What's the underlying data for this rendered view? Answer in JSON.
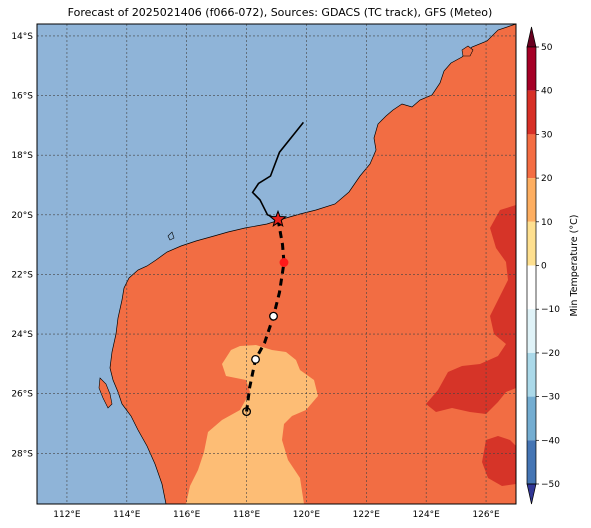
{
  "title": "Forecast of 2025021406 (f066-072), Sources: GDACS (TC track), GFS (Meteo)",
  "map": {
    "lon_range": [
      111,
      127
    ],
    "lat_range": [
      -29.7,
      -13.6
    ],
    "lon_ticks": [
      {
        "v": 112,
        "label": "112°E"
      },
      {
        "v": 114,
        "label": "114°E"
      },
      {
        "v": 116,
        "label": "116°E"
      },
      {
        "v": 118,
        "label": "118°E"
      },
      {
        "v": 120,
        "label": "120°E"
      },
      {
        "v": 122,
        "label": "122°E"
      },
      {
        "v": 124,
        "label": "124°E"
      },
      {
        "v": 126,
        "label": "126°E"
      }
    ],
    "lat_ticks": [
      {
        "v": -14,
        "label": "14°S"
      },
      {
        "v": -16,
        "label": "16°S"
      },
      {
        "v": -18,
        "label": "18°S"
      },
      {
        "v": -20,
        "label": "20°S"
      },
      {
        "v": -22,
        "label": "22°S"
      },
      {
        "v": -24,
        "label": "24°S"
      },
      {
        "v": -26,
        "label": "26°S"
      },
      {
        "v": -28,
        "label": "28°S"
      }
    ],
    "colors": {
      "ocean": "#8fb4d8",
      "land_20_30": "#f26d43",
      "land_30_40": "#d63428",
      "land_10_20": "#fdbd75",
      "coast": "#000000",
      "grid": "#444444"
    }
  },
  "track": {
    "past": [
      [
        119.9,
        -16.9
      ],
      [
        119.1,
        -17.9
      ],
      [
        118.8,
        -18.7
      ],
      [
        118.4,
        -18.95
      ],
      [
        118.2,
        -19.25
      ],
      [
        118.45,
        -19.5
      ],
      [
        118.7,
        -20.0
      ],
      [
        119.05,
        -20.15
      ]
    ],
    "forecast": [
      [
        119.05,
        -20.15
      ],
      [
        119.2,
        -21.0
      ],
      [
        119.25,
        -21.6
      ],
      [
        119.1,
        -22.6
      ],
      [
        118.9,
        -23.4
      ],
      [
        118.6,
        -24.3
      ],
      [
        118.3,
        -24.85
      ],
      [
        118.1,
        -25.8
      ],
      [
        118.0,
        -26.6
      ]
    ],
    "current_star": [
      119.05,
      -20.15
    ],
    "markers": [
      {
        "lon": 119.25,
        "lat": -21.6,
        "fill": "#ff1a1a"
      },
      {
        "lon": 118.9,
        "lat": -23.4,
        "fill": "#ffffff"
      },
      {
        "lon": 118.3,
        "lat": -24.85,
        "fill": "#ffffff"
      },
      {
        "lon": 118.0,
        "lat": -26.6,
        "fill": "none"
      }
    ]
  },
  "colorbar": {
    "label": "Min Temperature (°C)",
    "ticks": [
      "50",
      "40",
      "30",
      "20",
      "10",
      "0",
      "−10",
      "−20",
      "−30",
      "−40",
      "−50"
    ],
    "bins": [
      "#67001f",
      "#b2182b",
      "#d6604d",
      "#f4a582",
      "#fddbc7",
      "#f7f7f7",
      "#d1e5f0",
      "#92c5de",
      "#4393c3",
      "#2166ac",
      "#053061"
    ]
  }
}
